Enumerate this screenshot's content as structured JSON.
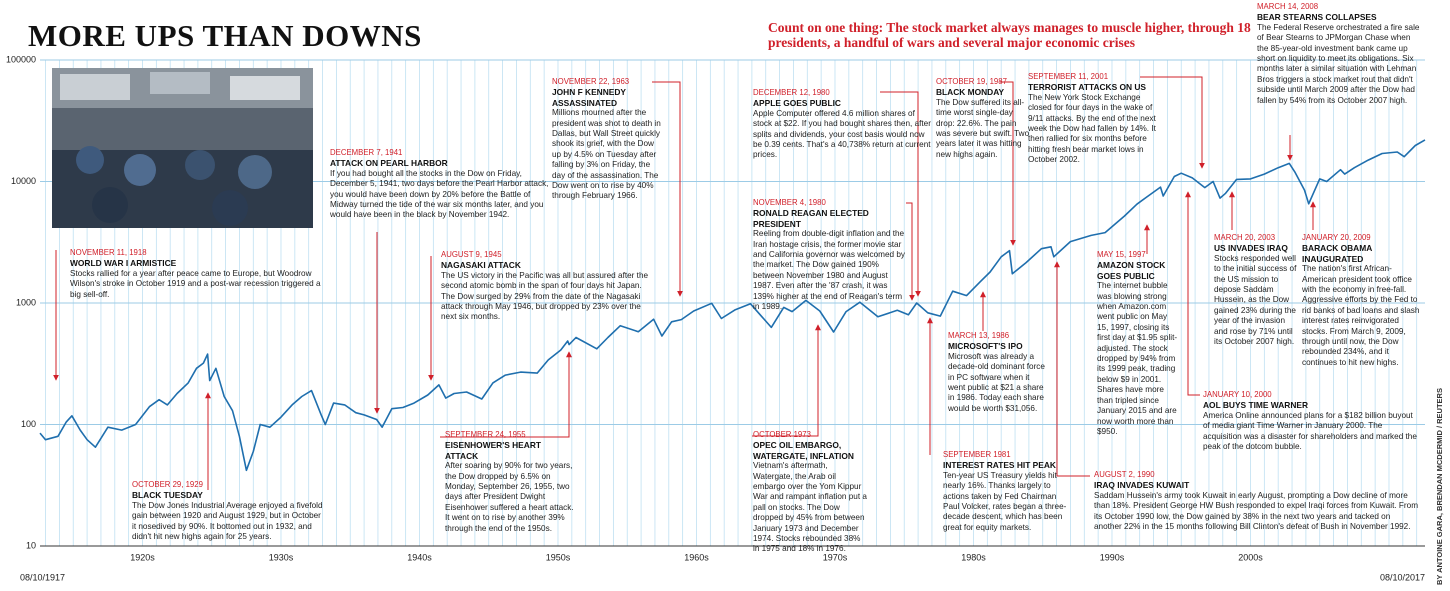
{
  "chart_data": {
    "type": "line",
    "title": "MORE UPS THAN DOWNS",
    "subtitle": "Count on one thing: The stock market always manages to muscle higher, through 18 presidents, a handful of wars and several major economic crises",
    "credit": "BY ANTOINE GARA, BRENDAN MCDERMID / REUTERS",
    "x_start_label": "08/10/1917",
    "x_end_label": "08/10/2017",
    "log_scale": true,
    "grid": true,
    "color": "#1f6fae",
    "xlim": [
      1917.6,
      2017.6
    ],
    "xticks": [
      {
        "value": 1925,
        "label": "1920s"
      },
      {
        "value": 1935,
        "label": "1930s"
      },
      {
        "value": 1945,
        "label": "1940s"
      },
      {
        "value": 1955,
        "label": "1950s"
      },
      {
        "value": 1965,
        "label": "1960s"
      },
      {
        "value": 1975,
        "label": "1970s"
      },
      {
        "value": 1985,
        "label": "1980s"
      },
      {
        "value": 1995,
        "label": "1990s"
      },
      {
        "value": 2005,
        "label": "2000s"
      }
    ],
    "ylim": [
      10,
      100000
    ],
    "yticks": [
      10,
      100,
      1000,
      10000,
      100000
    ],
    "x": [
      1917.6,
      1918.0,
      1918.9,
      1919.5,
      1919.9,
      1920.5,
      1921.0,
      1921.6,
      1922.5,
      1923.5,
      1924.5,
      1925.5,
      1926.2,
      1926.8,
      1927.5,
      1928.3,
      1928.9,
      1929.4,
      1929.7,
      1929.85,
      1930.3,
      1930.9,
      1931.5,
      1932.0,
      1932.5,
      1933.0,
      1933.5,
      1934.2,
      1935.0,
      1935.8,
      1936.5,
      1937.2,
      1937.9,
      1938.2,
      1938.8,
      1939.6,
      1940.4,
      1941.0,
      1941.9,
      1942.3,
      1943.0,
      1943.8,
      1944.6,
      1945.6,
      1946.4,
      1946.9,
      1947.5,
      1948.4,
      1949.5,
      1950.3,
      1951.2,
      1952.3,
      1953.5,
      1954.3,
      1955.2,
      1955.7,
      1955.8,
      1956.3,
      1957.8,
      1958.6,
      1959.5,
      1960.8,
      1961.9,
      1962.5,
      1963.2,
      1963.9,
      1964.8,
      1966.1,
      1966.8,
      1967.8,
      1968.9,
      1970.4,
      1971.3,
      1971.9,
      1972.9,
      1973.9,
      1974.9,
      1975.8,
      1976.8,
      1978.1,
      1979.5,
      1980.3,
      1980.9,
      1981.7,
      1982.6,
      1983.5,
      1984.5,
      1985.5,
      1986.2,
      1987.0,
      1987.6,
      1987.8,
      1988.8,
      1989.9,
      1990.6,
      1990.8,
      1992.0,
      1993.5,
      1994.5,
      1995.9,
      1996.8,
      1997.4,
      1998.5,
      1998.7,
      1999.5,
      2000.0,
      2000.8,
      2001.7,
      2002.3,
      2002.8,
      2003.2,
      2004.0,
      2005.0,
      2006.0,
      2007.0,
      2007.8,
      2008.2,
      2008.9,
      2009.2,
      2010.0,
      2010.5,
      2011.5,
      2011.8,
      2012.5,
      2013.5,
      2014.5,
      2015.6,
      2016.1,
      2016.9,
      2017.6
    ],
    "values": [
      85,
      75,
      80,
      105,
      118,
      90,
      75,
      65,
      95,
      90,
      100,
      140,
      160,
      145,
      180,
      220,
      290,
      320,
      380,
      230,
      290,
      170,
      130,
      80,
      42,
      60,
      100,
      95,
      115,
      145,
      170,
      190,
      120,
      100,
      150,
      145,
      125,
      120,
      110,
      95,
      135,
      138,
      150,
      175,
      212,
      165,
      180,
      185,
      162,
      220,
      255,
      270,
      265,
      340,
      410,
      487,
      455,
      520,
      420,
      520,
      650,
      580,
      735,
      535,
      700,
      730,
      860,
      995,
      745,
      880,
      985,
      630,
      920,
      850,
      1050,
      860,
      577,
      850,
      1015,
      770,
      870,
      800,
      1000,
      830,
      780,
      1250,
      1150,
      1500,
      1800,
      2400,
      2700,
      1740,
      2150,
      2800,
      2900,
      2400,
      3200,
      3600,
      3800,
      5200,
      6500,
      7300,
      9000,
      7600,
      11000,
      11700,
      10700,
      8900,
      10000,
      7300,
      8000,
      10400,
      10500,
      11500,
      13000,
      14100,
      12000,
      8500,
      6550,
      10500,
      10000,
      12500,
      11500,
      13000,
      15000,
      17000,
      17500,
      16000,
      19800,
      22000
    ],
    "annotations": [
      {
        "date": "NOVEMBER 11, 1918",
        "title": "WORLD WAR I ARMISTICE",
        "text": "Stocks rallied for a year after peace came to Europe, but Woodrow Wilson's stroke in October 1919 and a post-war recession triggered a big sell-off."
      },
      {
        "date": "OCTOBER 29, 1929",
        "title": "BLACK TUESDAY",
        "text": "The Dow Jones Industrial Average enjoyed a fivefold gain between 1920 and August 1929, but in October it nosedived by 90%. It bottomed out in 1932, and didn't hit new highs again for 25 years."
      },
      {
        "date": "DECEMBER 7, 1941",
        "title": "ATTACK ON PEARL HARBOR",
        "text": "If you had bought all the stocks in the Dow on Friday, December 5, 1941, two days before the Pearl Harbor attack, you would have been down by 20% before the Battle of Midway turned the tide of the war six months later, and you would have been in the black by November 1942."
      },
      {
        "date": "AUGUST 9, 1945",
        "title": "NAGASAKI ATTACK",
        "text": "The US victory in the Pacific was all but assured after the second atomic bomb in the span of four days hit Japan. The Dow surged by 29% from the date of the Nagasaki attack through May 1946, but dropped by 23% over the next six months."
      },
      {
        "date": "SEPTEMBER 24, 1955",
        "title": "EISENHOWER'S HEART ATTACK",
        "text": "After soaring by 90% for two years, the Dow dropped by 6.5% on Monday, September 26, 1955, two days after President Dwight Eisenhower suffered a heart attack. It went on to rise by another 39% through the end of the 1950s."
      },
      {
        "date": "NOVEMBER 22, 1963",
        "title": "JOHN F KENNEDY ASSASSINATED",
        "text": "Millions mourned after the president was shot to death in Dallas, but Wall Street quickly shook its grief, with the Dow up by 4.5% on Tuesday after falling by 3% on Friday, the day of the assassination. The Dow went on to rise by 40% through February 1966."
      },
      {
        "date": "OCTOBER 1973",
        "title": "OPEC OIL EMBARGO, WATERGATE, INFLATION",
        "text": "Vietnam's aftermath, Watergate, the Arab oil embargo over the Yom Kippur War and rampant inflation put a pall on stocks. The Dow dropped by 45% from between January 1973 and December 1974. Stocks rebounded 38% in 1975 and 18% in 1976."
      },
      {
        "date": "DECEMBER 12, 1980",
        "title": "APPLE GOES PUBLIC",
        "text": "Apple Computer offered 4.6 million shares of stock at $22. If you had bought shares then, after splits and dividends, your cost basis would now be 0.39 cents. That's a 40,738% return at current prices."
      },
      {
        "date": "NOVEMBER 4, 1980",
        "title": "RONALD REAGAN ELECTED PRESIDENT",
        "text": "Reeling from double-digit inflation and the Iran hostage crisis, the former movie star and California governor was welcomed by the market. The Dow gained 190% between November 1980 and August 1987. Even after the '87 crash, it was 139% higher at the end of Reagan's term in 1989."
      },
      {
        "date": "SEPTEMBER 1981",
        "title": "INTEREST RATES HIT PEAK",
        "text": "Ten-year US Treasury yields hit nearly 16%. Thanks largely to actions taken by Fed Chairman Paul Volcker, rates began a three-decade descent, which has been great for equity markets."
      },
      {
        "date": "MARCH 13, 1986",
        "title": "MICROSOFT'S IPO",
        "text": "Microsoft was already a decade-old dominant force in PC software when it went public at $21 a share in 1986. Today each share would be worth $31,056."
      },
      {
        "date": "OCTOBER 19, 1987",
        "title": "BLACK MONDAY",
        "text": "The Dow suffered its all-time worst single-day drop: 22.6%. The pain was severe but swift. Two years later it was hitting new highs again."
      },
      {
        "date": "AUGUST 2, 1990",
        "title": "IRAQ INVADES KUWAIT",
        "text": "Saddam Hussein's army took Kuwait in early August, prompting a Dow decline of more than 18%. President George HW Bush responded to expel Iraqi forces from Kuwait. From its October 1990 low, the Dow gained by 38% in the next two years and tacked on another 22% in the 15 months following Bill Clinton's defeat of Bush in November 1992."
      },
      {
        "date": "SEPTEMBER 11, 2001",
        "title": "TERRORIST ATTACKS ON US",
        "text": "The New York Stock Exchange closed for four days in the wake of 9/11 attacks. By the end of the next week the Dow had fallen by 14%. It then rallied for six months before hitting fresh bear market lows in October 2002."
      },
      {
        "date": "MAY 15, 1997",
        "title": "AMAZON STOCK GOES PUBLIC",
        "text": "The internet bubble was blowing strong when Amazon.com went public on May 15, 1997, closing its first day at $1.95 split-adjusted. The stock dropped by 94% from its 1999 peak, trading below $9 in 2001. Shares have more than tripled since January 2015 and are now worth more than $950."
      },
      {
        "date": "JANUARY 10, 2000",
        "title": "AOL BUYS TIME WARNER",
        "text": "America Online announced plans for a $182 billion buyout of media giant Time Warner in January 2000. The acquisition was a disaster for shareholders and marked the peak of the dotcom bubble."
      },
      {
        "date": "MARCH 20, 2003",
        "title": "US INVADES IRAQ",
        "text": "Stocks responded well to the initial success of the US mission to depose Saddam Hussein, as the Dow gained 23% during the year of the invasion and rose by 71% until its October 2007 high."
      },
      {
        "date": "MARCH 14, 2008",
        "title": "BEAR STEARNS COLLAPSES",
        "text": "The Federal Reserve orchestrated a fire sale of Bear Stearns to JPMorgan Chase when the 85-year-old investment bank came up short on liquidity to meet its obligations. Six months later a similar situation with Lehman Bros triggers a stock market rout that didn't subside until March 2009 after the Dow had fallen by 54% from its October 2007 high."
      },
      {
        "date": "JANUARY 20, 2009",
        "title": "BARACK OBAMA INAUGURATED",
        "text": "The nation's first African-American president took office with the economy in free-fall. Aggressive efforts by the Fed to rid banks of bad loans and slash interest rates reinvigorated stocks. From March 9, 2009, through until now, the Dow rebounded 234%, and it continues to hit new highs."
      }
    ]
  }
}
